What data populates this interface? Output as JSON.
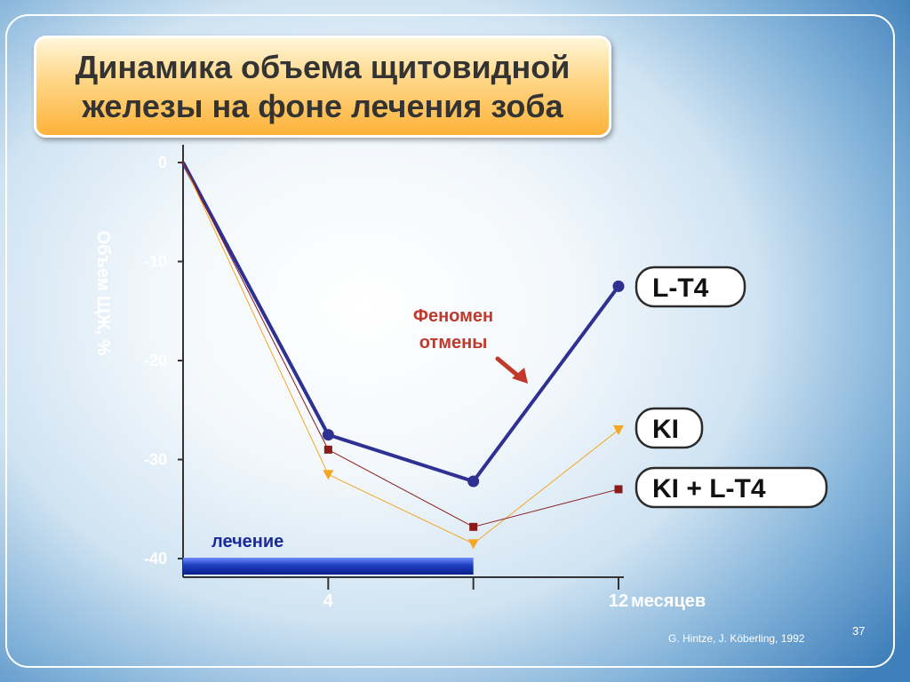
{
  "slide_number": "37",
  "credit": "G. Hintze, J. Köberling, 1992",
  "chart_data": {
    "type": "line",
    "title": "Динамика объема щитовидной железы на фоне лечения зоба",
    "title_lines": [
      "Динамика объема щитовидной",
      "железы на фоне лечения зоба"
    ],
    "ylabel": "Объем ЩЖ, %",
    "xlabel": "месяцев",
    "ylim": [
      -40,
      0
    ],
    "xlim": [
      0,
      12
    ],
    "y_ticks": [
      0,
      -10,
      -20,
      -30,
      -40
    ],
    "x_ticks": [
      {
        "value": 4,
        "label": "4"
      },
      {
        "value": 8,
        "label": ""
      },
      {
        "value": 12,
        "label": "12"
      }
    ],
    "x": [
      0,
      4,
      8,
      12
    ],
    "series": [
      {
        "name": "L-T4",
        "values": [
          0,
          -27.5,
          -32.2,
          -12.5
        ],
        "color": "#2e3192",
        "marker": "circle"
      },
      {
        "name": "KI",
        "values": [
          0,
          -31.5,
          -38.5,
          -27
        ],
        "color": "#f5a623",
        "marker": "triangle-down"
      },
      {
        "name": "KI + L-T4",
        "values": [
          0,
          -29,
          -36.8,
          -33
        ],
        "color": "#8b1a1a",
        "marker": "square"
      }
    ],
    "annotation": {
      "lines": [
        "Феномен",
        "отмены"
      ],
      "color": "#c0392b"
    },
    "treatment": {
      "label": "лечение",
      "from": 0,
      "to": 8,
      "color": "#1f3fbf"
    }
  }
}
